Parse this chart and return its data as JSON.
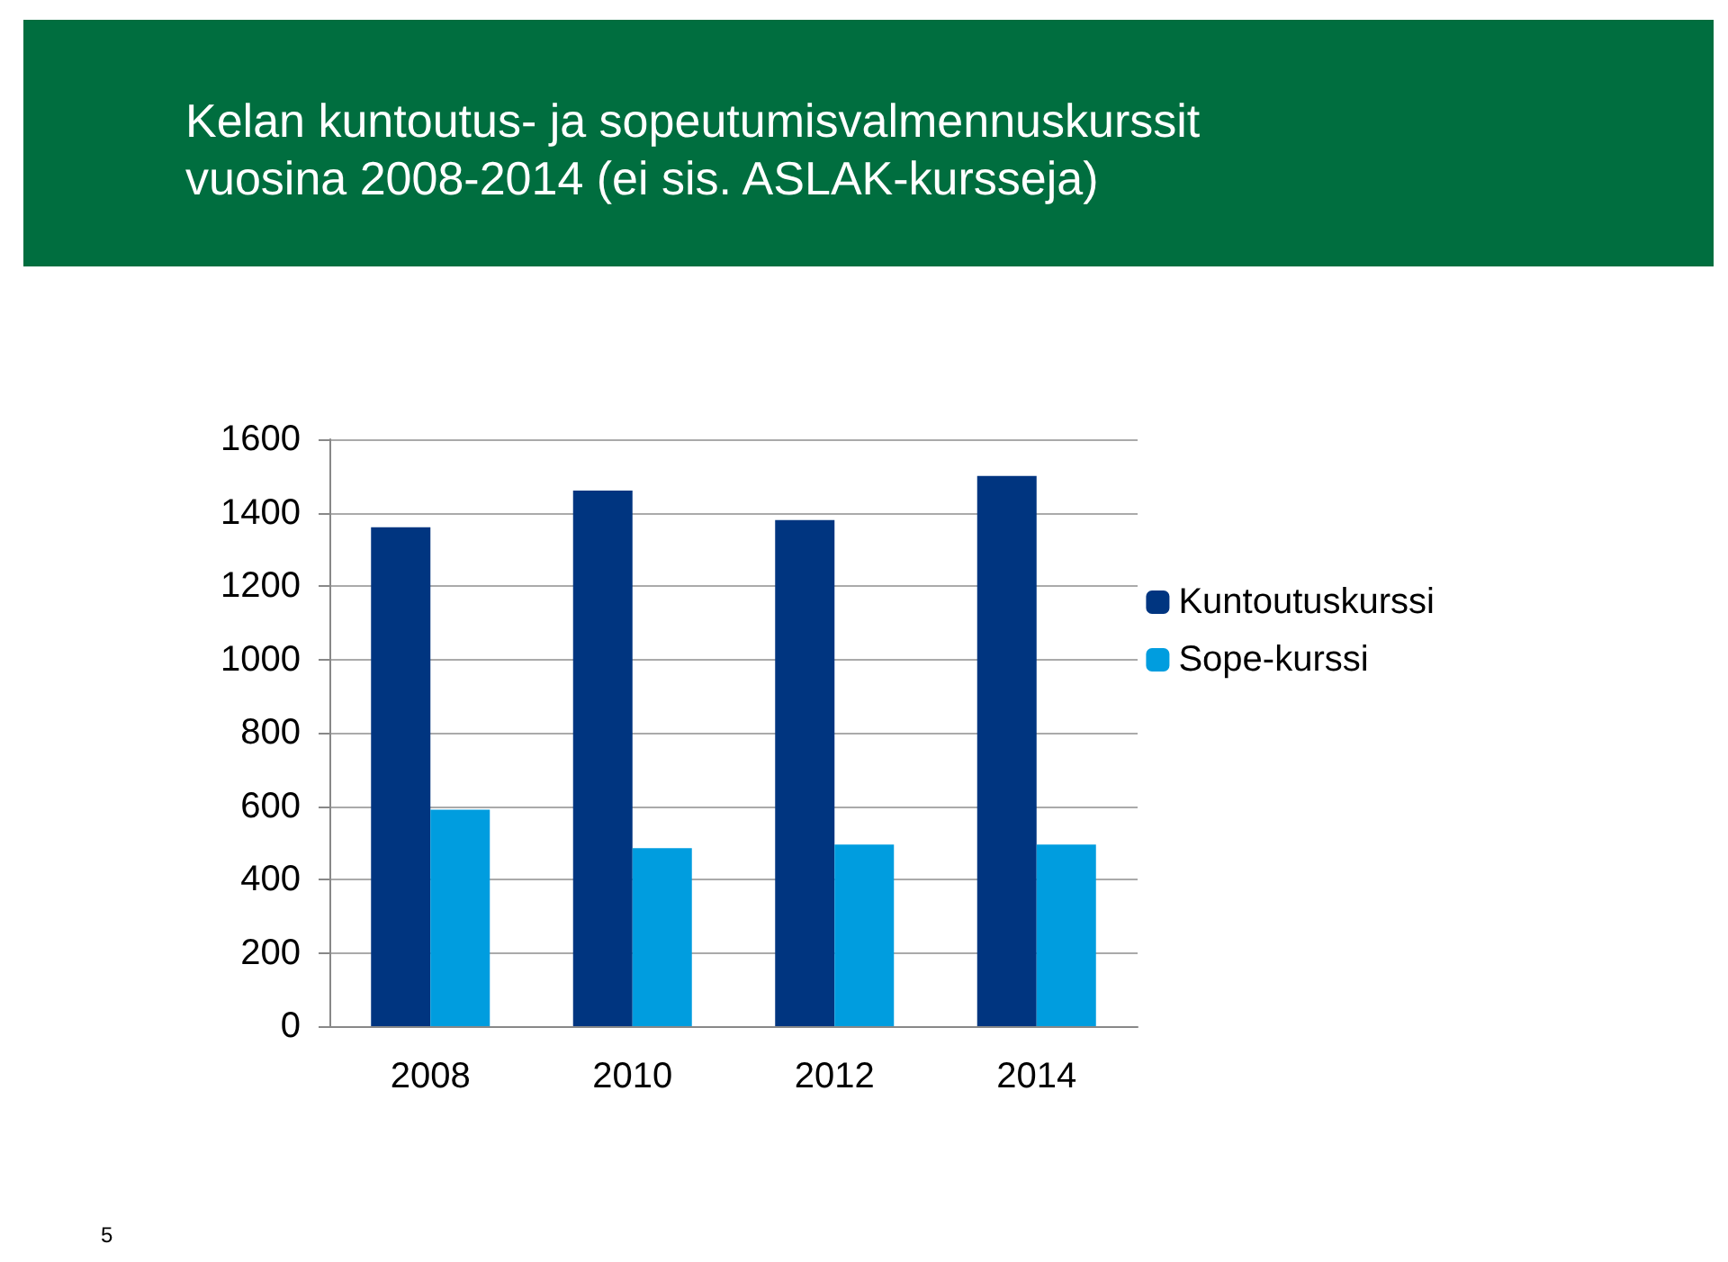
{
  "chart_data": {
    "type": "bar",
    "title": "Kelan kuntoutus- ja sopeutumisvalmennuskurssit\nvuosina 2008-2014 (ei sis. ASLAK-kursseja)",
    "categories": [
      "2008",
      "2010",
      "2012",
      "2014"
    ],
    "series": [
      {
        "name": "Kuntoutuskurssi",
        "color": "#003580",
        "values": [
          1360,
          1460,
          1380,
          1500
        ]
      },
      {
        "name": "Sope-kurssi",
        "color": "#009ddf",
        "values": [
          590,
          485,
          495,
          495
        ]
      }
    ],
    "ylim": [
      0,
      1600
    ],
    "yticks": [
      0,
      200,
      400,
      600,
      800,
      1000,
      1200,
      1400,
      1600
    ],
    "grid": "y",
    "legend": "right",
    "annotations": [
      "5"
    ]
  }
}
